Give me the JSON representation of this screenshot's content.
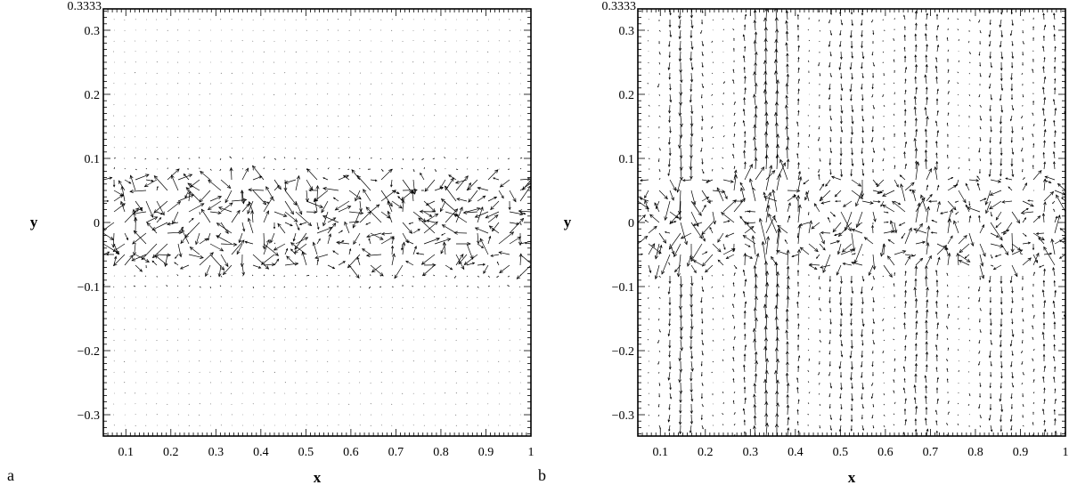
{
  "chart_data": [
    {
      "type": "quiver",
      "panel_label": "a",
      "xlabel": "x",
      "ylabel": "y",
      "xlim": [
        0.05,
        1.0
      ],
      "ylim": [
        -0.3333,
        0.3333
      ],
      "x_ticks": [
        "0.1",
        "0.2",
        "0.3",
        "0.4",
        "0.5",
        "0.6",
        "0.7",
        "0.8",
        "0.9",
        "1"
      ],
      "y_ticks": [
        "−0.3",
        "−0.2",
        "−0.1",
        "0",
        "0.1",
        "0.2",
        "0.3"
      ],
      "y_top_label": "0.3333",
      "field": "velocity vectors concentrated in a turbulent band |y| < 0.06; near-zero elsewhere"
    },
    {
      "type": "quiver",
      "panel_label": "b",
      "xlabel": "x",
      "ylabel": "y",
      "xlim": [
        0.05,
        1.0
      ],
      "ylim": [
        -0.3333,
        0.3333
      ],
      "x_ticks": [
        "0.1",
        "0.2",
        "0.3",
        "0.4",
        "0.5",
        "0.6",
        "0.7",
        "0.8",
        "0.9",
        "1"
      ],
      "y_ticks": [
        "−0.3",
        "−0.2",
        "−0.1",
        "0",
        "0.1",
        "0.2",
        "0.3"
      ],
      "y_top_label": "0.3333",
      "field": "turbulent band near y = 0 with vertical jets: upward near x ≈ 0.35, 0.68, 0.95; downward near x ≈ 0.15, 0.35, 0.52, 0.85"
    }
  ]
}
